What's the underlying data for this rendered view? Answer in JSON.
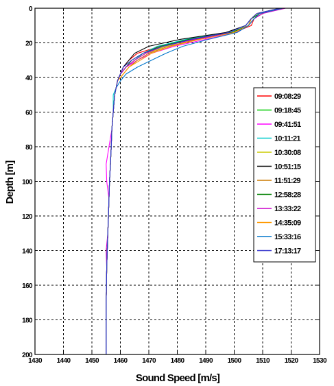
{
  "chart_data": {
    "type": "line",
    "xlabel": "Sound Speed [m/s]",
    "ylabel": "Depth [m]",
    "xlim": [
      1430,
      1530
    ],
    "ylim": [
      0,
      200
    ],
    "y_inverted": true,
    "grid": true,
    "legend_position": "right",
    "x_ticks": [
      "1430",
      "1440",
      "1450",
      "1460",
      "1470",
      "1480",
      "1490",
      "1500",
      "1510",
      "1520",
      "1530"
    ],
    "y_ticks": [
      "0",
      "20",
      "40",
      "60",
      "80",
      "100",
      "120",
      "140",
      "160",
      "180",
      "200"
    ],
    "series": [
      {
        "name": "09:08:29",
        "color": "#ff0000",
        "depth": [
          0,
          3,
          6,
          10,
          14,
          18,
          22,
          26,
          30,
          34,
          38,
          42,
          46,
          50,
          60,
          70,
          80,
          90,
          100,
          110,
          120,
          130,
          140,
          150,
          160,
          170,
          180,
          190,
          200
        ],
        "speed": [
          1517,
          1510,
          1507,
          1506,
          1500,
          1486,
          1474,
          1466,
          1463,
          1461,
          1460,
          1459,
          1458.5,
          1458,
          1457.5,
          1457,
          1456.8,
          1456.5,
          1456.2,
          1456,
          1455.8,
          1455.6,
          1455.4,
          1455.2,
          1455.1,
          1455,
          1455,
          1455,
          1455
        ]
      },
      {
        "name": "09:18:45",
        "color": "#00cc00",
        "depth": [
          0,
          3,
          6,
          10,
          14,
          18,
          22,
          26,
          30,
          34,
          38,
          42,
          46,
          50,
          60,
          70,
          80,
          90,
          100,
          110,
          120,
          130,
          140,
          150,
          160,
          170,
          180,
          190,
          200
        ],
        "speed": [
          1516,
          1509,
          1506,
          1505,
          1499,
          1484,
          1475,
          1468,
          1465,
          1462,
          1460,
          1459,
          1458.5,
          1458,
          1457.5,
          1457,
          1456.8,
          1456.5,
          1456.2,
          1456,
          1455.8,
          1455.6,
          1455.4,
          1455.2,
          1455.1,
          1455,
          1455,
          1455,
          1455
        ]
      },
      {
        "name": "09:41:51",
        "color": "#ff00ff",
        "depth": [
          0,
          3,
          6,
          10,
          14,
          18,
          22,
          26,
          30,
          34,
          38,
          42,
          46,
          50,
          60,
          70,
          80,
          90,
          100,
          110,
          120,
          130,
          140,
          150,
          160,
          170,
          180,
          190,
          200
        ],
        "speed": [
          1518,
          1509,
          1507,
          1505,
          1501,
          1490,
          1479,
          1471,
          1466,
          1462,
          1460,
          1459,
          1458.5,
          1458,
          1457.5,
          1457,
          1456,
          1455,
          1455.2,
          1456,
          1455.8,
          1455.6,
          1455.4,
          1455.2,
          1455.1,
          1455,
          1455,
          1455,
          1455
        ]
      },
      {
        "name": "10:11:21",
        "color": "#00cccc",
        "depth": [
          0,
          3,
          6,
          10,
          14,
          18,
          22,
          26,
          30,
          34,
          38,
          42,
          46,
          50,
          60,
          70,
          80,
          90,
          100,
          110,
          120,
          130,
          140,
          150,
          160,
          170,
          180,
          190,
          200
        ],
        "speed": [
          1516,
          1508,
          1506,
          1504,
          1498,
          1483,
          1473,
          1468,
          1465,
          1462,
          1460,
          1459,
          1458.5,
          1457.5,
          1457.5,
          1457,
          1456.8,
          1456.5,
          1456.2,
          1456,
          1455.8,
          1455.6,
          1455.4,
          1455.2,
          1455.1,
          1455,
          1455,
          1455,
          1455
        ]
      },
      {
        "name": "10:30:08",
        "color": "#cccc00",
        "depth": [
          0,
          3,
          6,
          10,
          14,
          18,
          22,
          26,
          30,
          34,
          38,
          42,
          46,
          50,
          60,
          70,
          80,
          90,
          100,
          110,
          120,
          130,
          140,
          150,
          160,
          170,
          180,
          190,
          200
        ],
        "speed": [
          1517,
          1509,
          1507,
          1505,
          1499,
          1485,
          1476,
          1469,
          1465,
          1462,
          1460,
          1459,
          1458.5,
          1458,
          1457.5,
          1457,
          1456.8,
          1456.5,
          1456.2,
          1456,
          1455.8,
          1455.6,
          1455.4,
          1455.2,
          1455.1,
          1455,
          1455,
          1455,
          1455
        ]
      },
      {
        "name": "10:51:15",
        "color": "#000000",
        "depth": [
          0,
          3,
          6,
          10,
          14,
          18,
          22,
          26,
          30,
          34,
          38,
          42,
          46,
          50,
          60,
          70,
          80,
          90,
          100,
          110,
          120,
          130,
          140,
          150,
          160,
          170,
          180,
          190,
          200
        ],
        "speed": [
          1516,
          1508,
          1506,
          1504,
          1497,
          1481,
          1470,
          1465,
          1463,
          1461,
          1460,
          1459,
          1458.5,
          1458,
          1457.5,
          1457,
          1456.8,
          1456.5,
          1456.2,
          1456,
          1455.8,
          1455.6,
          1455.4,
          1455.2,
          1455.1,
          1455,
          1455,
          1455,
          1455
        ]
      },
      {
        "name": "11:51:29",
        "color": "#cc7a00",
        "depth": [
          0,
          3,
          6,
          10,
          14,
          18,
          22,
          26,
          30,
          34,
          38,
          42,
          46,
          50,
          60,
          70,
          80,
          90,
          100,
          110,
          120,
          130,
          140,
          150,
          160,
          170,
          180,
          190,
          200
        ],
        "speed": [
          1517,
          1509,
          1507,
          1505,
          1500,
          1487,
          1477,
          1470,
          1466,
          1463,
          1461,
          1459,
          1458.5,
          1458,
          1457.5,
          1457,
          1456.8,
          1456.5,
          1456.2,
          1456,
          1455.8,
          1455.6,
          1455.4,
          1455.2,
          1455.1,
          1455,
          1455,
          1455,
          1455
        ]
      },
      {
        "name": "12:58:28",
        "color": "#008000",
        "depth": [
          0,
          3,
          6,
          10,
          14,
          18,
          22,
          26,
          30,
          34,
          38,
          42,
          46,
          50,
          60,
          70,
          80,
          90,
          100,
          110,
          120,
          130,
          140,
          150,
          160,
          170,
          180,
          190,
          200
        ],
        "speed": [
          1517,
          1509,
          1506,
          1505,
          1499,
          1484,
          1474,
          1468,
          1464,
          1462,
          1460,
          1459,
          1458.5,
          1458,
          1457.5,
          1457,
          1456.8,
          1456.5,
          1456.2,
          1456,
          1455.8,
          1455.6,
          1455.4,
          1455.2,
          1455.1,
          1455,
          1455,
          1455,
          1455
        ]
      },
      {
        "name": "13:33:22",
        "color": "#cc00cc",
        "depth": [
          0,
          3,
          6,
          10,
          14,
          18,
          22,
          26,
          30,
          34,
          38,
          42,
          46,
          50,
          60,
          70,
          80,
          90,
          100,
          110,
          120,
          130,
          140,
          150,
          160,
          170,
          180,
          190,
          200
        ],
        "speed": [
          1518,
          1510,
          1507,
          1505,
          1500,
          1486,
          1475,
          1469,
          1465,
          1462,
          1460,
          1459,
          1458.5,
          1458,
          1457.5,
          1457,
          1456.8,
          1456.5,
          1456.2,
          1456,
          1455.8,
          1455.6,
          1455,
          1455.2,
          1455.1,
          1455,
          1455,
          1455,
          1455
        ]
      },
      {
        "name": "14:35:09",
        "color": "#ff9900",
        "depth": [
          0,
          3,
          6,
          10,
          14,
          18,
          22,
          26,
          30,
          34,
          38,
          42,
          46,
          50,
          60,
          70,
          80,
          90,
          100,
          110,
          120,
          130,
          140,
          150,
          160,
          170,
          180,
          190,
          200
        ],
        "speed": [
          1516,
          1508,
          1506,
          1505,
          1500,
          1488,
          1478,
          1471,
          1467,
          1463,
          1461,
          1459,
          1458.5,
          1458,
          1457.5,
          1457,
          1456.8,
          1456.5,
          1456.2,
          1456,
          1455.8,
          1455.6,
          1455.4,
          1455.2,
          1455.1,
          1455,
          1455,
          1455,
          1455
        ]
      },
      {
        "name": "15:33:16",
        "color": "#0077cc",
        "depth": [
          0,
          3,
          6,
          10,
          14,
          18,
          22,
          26,
          30,
          34,
          38,
          42,
          46,
          50,
          60,
          70,
          80,
          90,
          100,
          110,
          120,
          130,
          140,
          150,
          160,
          170,
          180,
          190,
          200
        ],
        "speed": [
          1517,
          1509,
          1507,
          1505,
          1501,
          1491,
          1482,
          1476,
          1471,
          1466,
          1462,
          1460,
          1458.5,
          1458,
          1457.5,
          1457,
          1456.8,
          1456.5,
          1456.2,
          1456,
          1455.8,
          1455.6,
          1455.4,
          1455.2,
          1455.1,
          1455,
          1455,
          1455,
          1455
        ]
      },
      {
        "name": "17:13:17",
        "color": "#3333cc",
        "depth": [
          0,
          3,
          6,
          10,
          14,
          18,
          22,
          26,
          30,
          34,
          38,
          42,
          46,
          50,
          60,
          70,
          80,
          90,
          100,
          110,
          120,
          130,
          140,
          150,
          160,
          170,
          180,
          190,
          200
        ],
        "speed": [
          1516,
          1508,
          1506,
          1504,
          1498,
          1485,
          1475,
          1468,
          1464,
          1461,
          1460,
          1459,
          1458.5,
          1458,
          1457.5,
          1457,
          1456.8,
          1456.5,
          1456.2,
          1456,
          1455.8,
          1455.6,
          1455.4,
          1455.2,
          1455.1,
          1455,
          1455,
          1455,
          1455
        ]
      }
    ]
  }
}
